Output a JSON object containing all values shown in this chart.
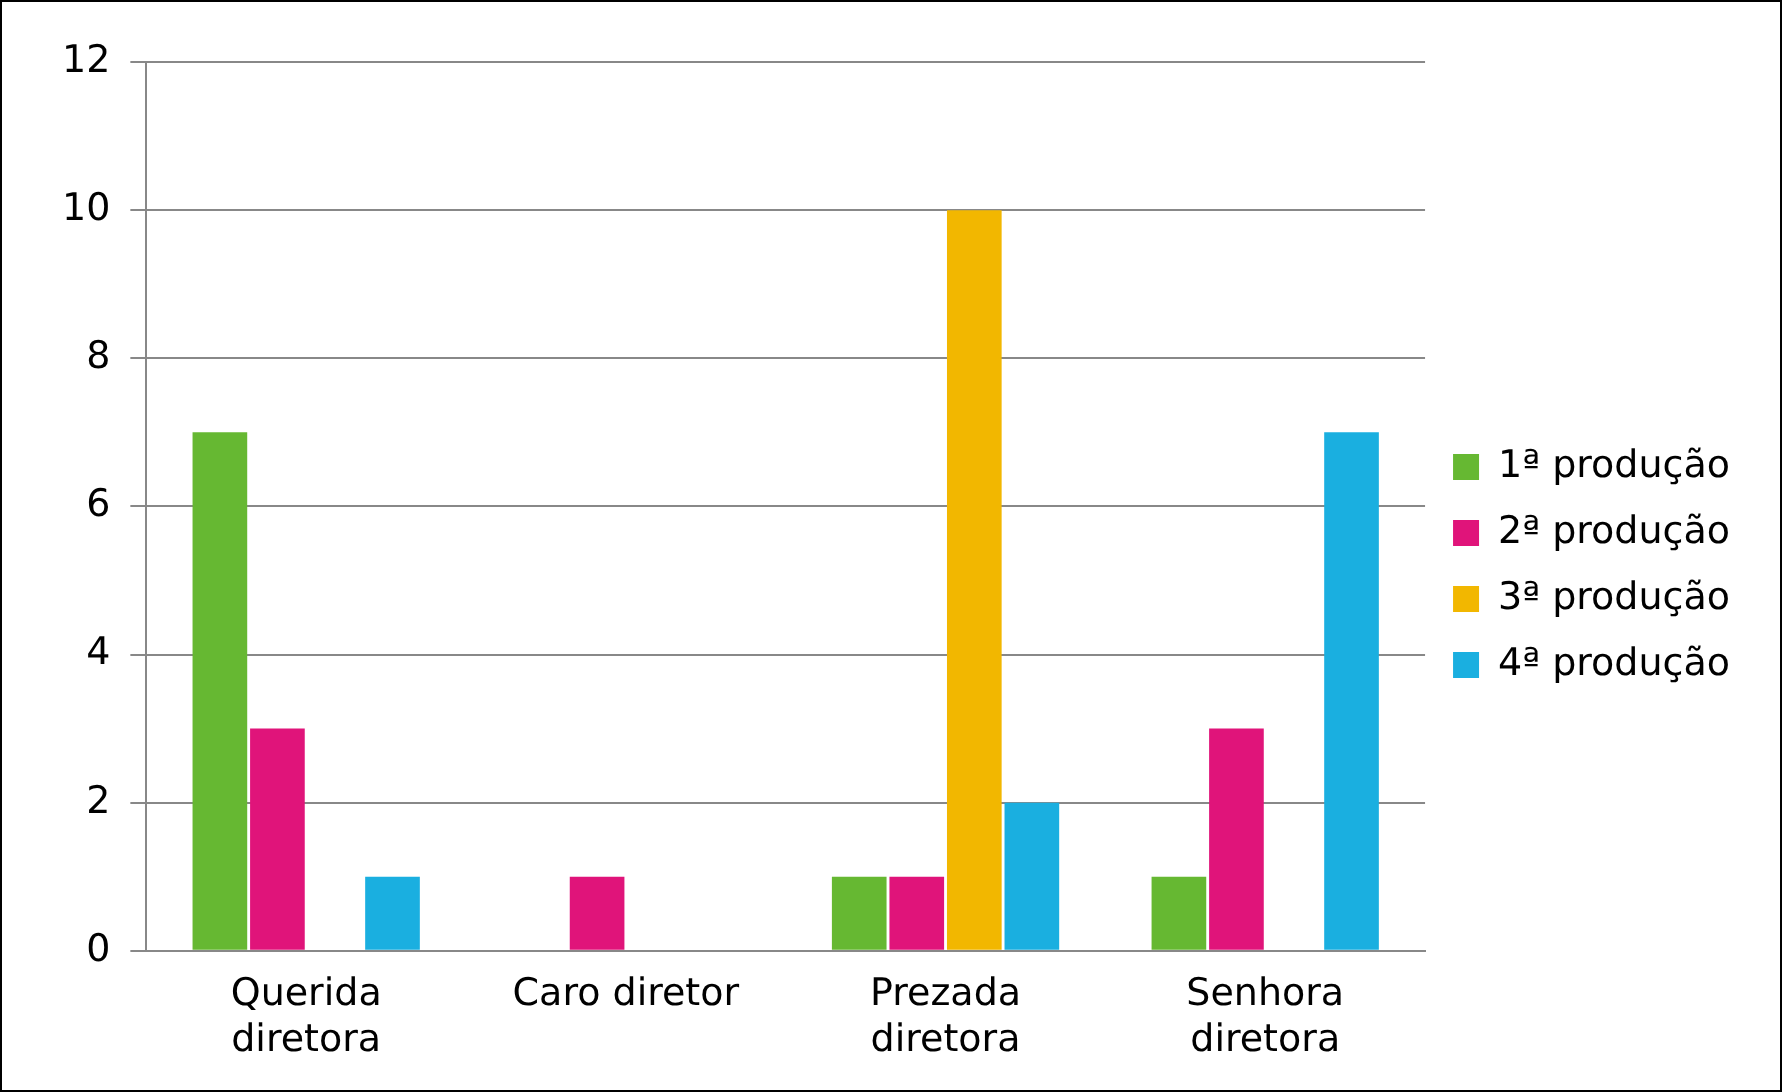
{
  "chart_data": {
    "type": "bar",
    "categories": [
      "Querida diretora",
      "Caro diretor",
      "Prezada diretora",
      "Senhora diretora"
    ],
    "series": [
      {
        "name": "1ª produção",
        "color": "#66b832",
        "values": [
          7,
          0,
          1,
          1
        ]
      },
      {
        "name": "2ª produção",
        "color": "#e0147a",
        "values": [
          3,
          1,
          1,
          3
        ]
      },
      {
        "name": "3ª produção",
        "color": "#f2b700",
        "values": [
          0,
          0,
          10,
          0
        ]
      },
      {
        "name": "4ª produção",
        "color": "#1aafe0",
        "values": [
          1,
          0,
          2,
          7
        ]
      }
    ],
    "ylim": [
      0,
      12
    ],
    "yticks": [
      0,
      2,
      4,
      6,
      8,
      10,
      12
    ],
    "grid": "y",
    "legend": "right"
  }
}
